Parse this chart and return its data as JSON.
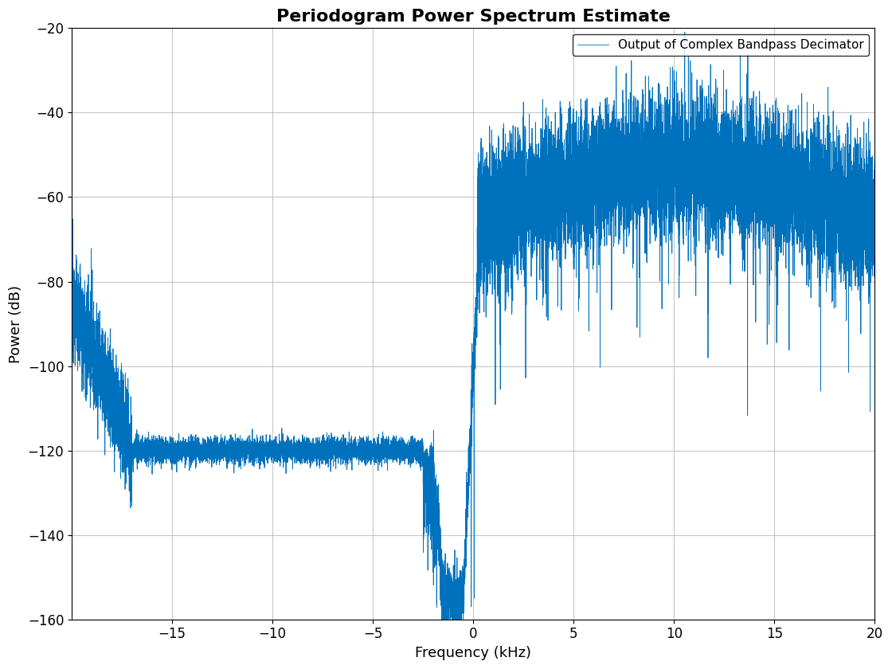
{
  "title": "Periodogram Power Spectrum Estimate",
  "xlabel": "Frequency (kHz)",
  "ylabel": "Power (dB)",
  "legend_label": "Output of Complex Bandpass Decimator",
  "line_color": "#0072BD",
  "background_color": "#ffffff",
  "xlim": [
    -20,
    20
  ],
  "ylim": [
    -160,
    -20
  ],
  "xticks": [
    -15,
    -10,
    -5,
    0,
    5,
    10,
    15,
    20
  ],
  "yticks": [
    -160,
    -140,
    -120,
    -100,
    -80,
    -60,
    -40,
    -20
  ],
  "grid_color": "#b0b0b0",
  "title_fontsize": 16,
  "label_fontsize": 13,
  "tick_fontsize": 12,
  "legend_fontsize": 11,
  "line_width": 0.6,
  "N": 16000
}
